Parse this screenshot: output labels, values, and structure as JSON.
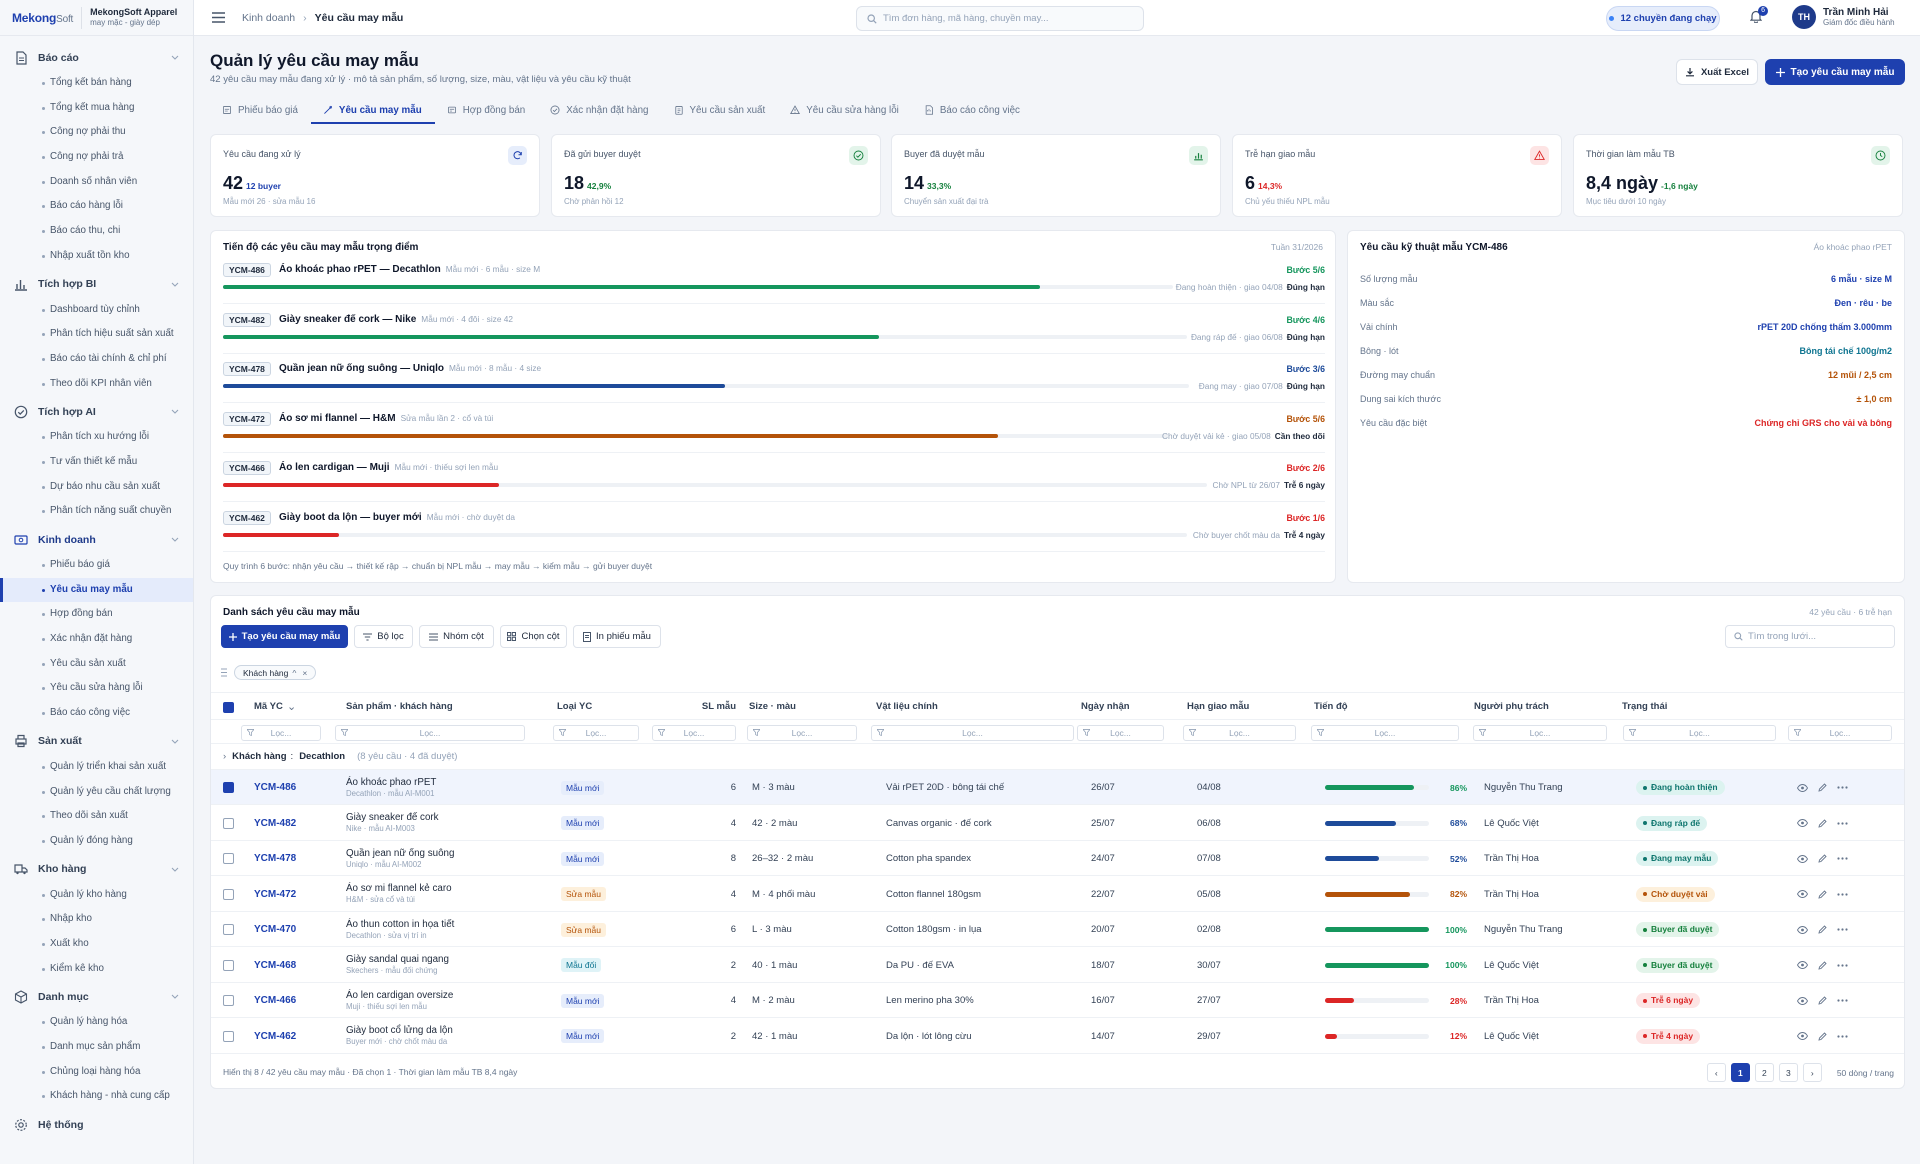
{
  "brand": {
    "logo_main": "Mekong",
    "logo_suffix": "Soft",
    "name": "MekongSoft Apparel",
    "sub": "may mặc - giày dép"
  },
  "sidebar": {
    "groups": [
      {
        "label": "Báo cáo",
        "icon": "document-icon",
        "items": [
          "Tổng kết bán hàng",
          "Tổng kết mua hàng",
          "Công nợ phải thu",
          "Công nợ phải trả",
          "Doanh số nhân viên",
          "Báo cáo hàng lỗi",
          "Báo cáo thu, chi",
          "Nhập xuất tồn kho"
        ]
      },
      {
        "label": "Tích hợp BI",
        "icon": "bar-chart-icon",
        "items": [
          "Dashboard tùy chỉnh",
          "Phân tích hiệu suất sản xuất",
          "Báo cáo tài chính & chỉ phí",
          "Theo dõi KPI nhân viên"
        ]
      },
      {
        "label": "Tích hợp AI",
        "icon": "check-circle-icon",
        "items": [
          "Phân tích xu hướng lỗi",
          "Tư vấn thiết kế mẫu",
          "Dự báo nhu cầu sản xuất",
          "Phân tích năng suất chuyền"
        ]
      },
      {
        "label": "Kinh doanh",
        "icon": "money-icon",
        "items": [
          "Phiếu báo giá",
          "Yêu cầu may mẫu",
          "Hợp đồng bán",
          "Xác nhận đặt hàng",
          "Yêu cầu sản xuất",
          "Yêu cầu sửa hàng lỗi",
          "Báo cáo công việc"
        ]
      },
      {
        "label": "Sản xuất",
        "icon": "printer-icon",
        "items": [
          "Quản lý triển khai sản xuất",
          "Quản lý yêu cầu chất lượng",
          "Theo dõi sản xuất",
          "Quản lý đóng hàng"
        ]
      },
      {
        "label": "Kho hàng",
        "icon": "truck-icon",
        "items": [
          "Quản lý kho hàng",
          "Nhập kho",
          "Xuất kho",
          "Kiểm kê kho"
        ]
      },
      {
        "label": "Danh mục",
        "icon": "box-icon",
        "items": [
          "Quản lý hàng hóa",
          "Danh mục sản phẩm",
          "Chủng loại hàng hóa",
          "Khách hàng - nhà cung cấp"
        ]
      }
    ],
    "system_label": "Hệ thống",
    "active_item": "Yêu cầu may mẫu"
  },
  "topbar": {
    "breadcrumb": [
      "Kinh doanh",
      "Yêu cầu may mẫu"
    ],
    "search_placeholder": "Tìm đơn hàng, mã hàng, chuyền may...",
    "status_pill": "12 chuyền đang chạy",
    "notif_count": "6",
    "user_initials": "TH",
    "user_name": "Trần Minh Hải",
    "user_role": "Giám đốc điều hành"
  },
  "header": {
    "title": "Quản lý yêu cầu may mẫu",
    "subtitle": "42 yêu cầu may mẫu đang xử lý · mô tả sản phẩm, số lượng, size, màu, vật liệu và yêu cầu kỹ thuật",
    "export_label": "Xuất Excel",
    "create_label": "Tạo yêu cầu may mẫu"
  },
  "tabs": [
    {
      "label": "Phiếu báo giá",
      "icon": "receipt-icon"
    },
    {
      "label": "Yêu cầu may mẫu",
      "icon": "needle-icon",
      "active": true
    },
    {
      "label": "Hợp đồng bán",
      "icon": "contract-icon"
    },
    {
      "label": "Xác nhận đặt hàng",
      "icon": "check-circle-icon"
    },
    {
      "label": "Yêu cầu sản xuất",
      "icon": "clipboard-icon"
    },
    {
      "label": "Yêu cầu sửa hàng lỗi",
      "icon": "warning-icon"
    },
    {
      "label": "Báo cáo công việc",
      "icon": "report-icon"
    }
  ],
  "kpis": [
    {
      "label": "Yêu cầu đang xử lý",
      "value": "42",
      "delta": "12 buyer",
      "note": "Mẫu mới 26 · sửa mẫu 16",
      "color": "#1e40af",
      "tint": "#e6edfb",
      "icon": "refresh-icon"
    },
    {
      "label": "Đã gửi buyer duyệt",
      "value": "18",
      "delta": "42,9%",
      "note": "Chờ phản hồi 12",
      "color": "#15803d",
      "tint": "#e3f4ea",
      "icon": "check-circle-icon"
    },
    {
      "label": "Buyer đã duyệt mẫu",
      "value": "14",
      "delta": "33,3%",
      "note": "Chuyển sản xuất đại trà",
      "color": "#15803d",
      "tint": "#e3f4ea",
      "icon": "chart-icon"
    },
    {
      "label": "Trễ hạn giao mẫu",
      "value": "6",
      "delta": "14,3%",
      "note": "Chủ yếu thiếu NPL mẫu",
      "color": "#dc2626",
      "tint": "#fde4e4",
      "icon": "warning-icon"
    },
    {
      "label": "Thời gian làm mẫu TB",
      "value": "8,4 ngày",
      "delta": "-1,6 ngày",
      "note": "Mục tiêu dưới 10 ngày",
      "color": "#15803d",
      "tint": "#e3f4ea",
      "icon": "clock-icon"
    }
  ],
  "progress": {
    "title": "Tiến độ các yêu cầu may mẫu trọng điểm",
    "week": "Tuần 31/2026",
    "rows": [
      {
        "code": "YCM-486",
        "name": "Áo khoác phao rPET — Decathlon",
        "meta": "Mẫu mới · 6 mẫu · size M",
        "step": "Bước 5/6",
        "progress": 0.86,
        "color": "#15965d",
        "stage": "Đang hoàn thiện · giao 04/08",
        "state": "Đúng hạn",
        "state_color": "#1e293b"
      },
      {
        "code": "YCM-482",
        "name": "Giày sneaker đế cork — Nike",
        "meta": "Mẫu mới · 4 đôi · size 42",
        "step": "Bước 4/6",
        "progress": 0.68,
        "color": "#15965d",
        "stage": "Đang ráp đế · giao 06/08",
        "state": "Đúng hạn",
        "state_color": "#1e293b"
      },
      {
        "code": "YCM-478",
        "name": "Quần jean nữ ống suông — Uniqlo",
        "meta": "Mẫu mới · 8 mẫu · 4 size",
        "step": "Bước 3/6",
        "progress": 0.52,
        "color": "#1e4b9a",
        "stage": "Đang may · giao 07/08",
        "state": "Đúng hạn",
        "state_color": "#1e293b"
      },
      {
        "code": "YCM-472",
        "name": "Áo sơ mi flannel — H&M",
        "meta": "Sửa mẫu lần 2 · cổ và túi",
        "step": "Bước 5/6",
        "progress": 0.82,
        "color": "#b45309",
        "stage": "Chờ duyệt vải kẻ · giao 05/08",
        "state": "Cần theo dõi",
        "state_color": "#1e293b"
      },
      {
        "code": "YCM-466",
        "name": "Áo len cardigan — Muji",
        "meta": "Mẫu mới · thiếu sợi len mẫu",
        "step": "Bước 2/6",
        "progress": 0.28,
        "color": "#dc2626",
        "stage": "Chờ NPL từ 26/07",
        "state": "Trễ 6 ngày",
        "state_color": "#1e293b"
      },
      {
        "code": "YCM-462",
        "name": "Giày boot da lộn — buyer mới",
        "meta": "Mẫu mới · chờ duyệt da",
        "step": "Bước 1/6",
        "progress": 0.12,
        "color": "#dc2626",
        "stage": "Chờ buyer chốt màu da",
        "state": "Trễ 4 ngày",
        "state_color": "#1e293b"
      }
    ],
    "footer": "Quy trình 6 bước: nhận yêu cầu → thiết kế rập → chuẩn bị NPL mẫu → may mẫu → kiểm mẫu → gửi buyer duyệt"
  },
  "spec": {
    "title": "Yêu cầu kỹ thuật mẫu YCM-486",
    "product": "Áo khoác phao rPET",
    "rows": [
      {
        "k": "Số lượng mẫu",
        "v": "6 mẫu · size M",
        "color": "#1e40af"
      },
      {
        "k": "Màu sắc",
        "v": "Đen · rêu · be",
        "color": "#1e40af"
      },
      {
        "k": "Vải chính",
        "v": "rPET 20D chống thấm 3.000mm",
        "color": "#1e40af"
      },
      {
        "k": "Bông · lót",
        "v": "Bông tái chế 100g/m2",
        "color": "#0e7490"
      },
      {
        "k": "Đường may chuẩn",
        "v": "12 mũi / 2,5 cm",
        "color": "#b45309"
      },
      {
        "k": "Dung sai kích thước",
        "v": "± 1,0 cm",
        "color": "#b45309"
      },
      {
        "k": "Yêu cầu đặc biệt",
        "v": "Chứng chỉ GRS cho vải và bông",
        "color": "#dc2626"
      }
    ]
  },
  "table": {
    "title": "Danh sách yêu cầu may mẫu",
    "meta": "42 yêu cầu · 6 trễ hạn",
    "toolbar": {
      "create": "Tạo yêu cầu may mẫu",
      "filter": "Bộ lọc",
      "group": "Nhóm cột",
      "columns": "Chọn cột",
      "print": "In phiếu mẫu",
      "search_placeholder": "Tìm trong lưới..."
    },
    "group_chip": "Khách hàng",
    "filter_placeholder": "Lọc...",
    "columns": [
      "Mã YC",
      "Sản phẩm · khách hàng",
      "Loại YC",
      "SL mẫu",
      "Size · màu",
      "Vật liệu chính",
      "Ngày nhận",
      "Hạn giao mẫu",
      "Tiến độ",
      "Người phụ trách",
      "Trạng thái"
    ],
    "group_row": {
      "label": "Khách hàng",
      "value": "Decathlon",
      "meta": "(8 yêu cầu · 4 đã duyệt)"
    },
    "rows": [
      {
        "code": "YCM-486",
        "product": "Áo khoác phao rPET",
        "sub": "Decathlon · mẫu AI-M001",
        "type": "Mẫu mới",
        "qty": "6",
        "size": "M · 3 màu",
        "material": "Vải rPET 20D · bông tái chế",
        "recv": "26/07",
        "due": "04/08",
        "progress": 0.86,
        "pct": "86%",
        "pcolor": "#15965d",
        "owner": "Nguyễn Thu Trang",
        "status": "Đang hoàn thiện",
        "status_color": "#0f766e",
        "status_bg": "#dcf3f0",
        "selected": true
      },
      {
        "code": "YCM-482",
        "product": "Giày sneaker đế cork",
        "sub": "Nike · mẫu AI-M003",
        "type": "Mẫu mới",
        "qty": "4",
        "size": "42 · 2 màu",
        "material": "Canvas organic · đế cork",
        "recv": "25/07",
        "due": "06/08",
        "progress": 0.68,
        "pct": "68%",
        "pcolor": "#1e4b9a",
        "owner": "Lê Quốc Việt",
        "status": "Đang ráp đế",
        "status_color": "#0f766e",
        "status_bg": "#dcf3f0",
        "selected": false
      },
      {
        "code": "YCM-478",
        "product": "Quần jean nữ ống suông",
        "sub": "Uniqlo · mẫu AI-M002",
        "type": "Mẫu mới",
        "qty": "8",
        "size": "26–32 · 2 màu",
        "material": "Cotton pha spandex",
        "recv": "24/07",
        "due": "07/08",
        "progress": 0.52,
        "pct": "52%",
        "pcolor": "#1e4b9a",
        "owner": "Trần Thị Hoa",
        "status": "Đang may mẫu",
        "status_color": "#0f766e",
        "status_bg": "#dcf3f0",
        "selected": false
      },
      {
        "code": "YCM-472",
        "product": "Áo sơ mi flannel kẻ caro",
        "sub": "H&M · sửa cổ và túi",
        "type": "Sửa mẫu",
        "qty": "4",
        "size": "M · 4 phối màu",
        "material": "Cotton flannel 180gsm",
        "recv": "22/07",
        "due": "05/08",
        "progress": 0.82,
        "pct": "82%",
        "pcolor": "#b45309",
        "owner": "Trần Thị Hoa",
        "status": "Chờ duyệt vải",
        "status_color": "#b45309",
        "status_bg": "#fdf0dc",
        "selected": false
      },
      {
        "code": "YCM-470",
        "product": "Áo thun cotton in họa tiết",
        "sub": "Decathlon · sửa vị trí in",
        "type": "Sửa mẫu",
        "qty": "6",
        "size": "L · 3 màu",
        "material": "Cotton 180gsm · in lụa",
        "recv": "20/07",
        "due": "02/08",
        "progress": 1.0,
        "pct": "100%",
        "pcolor": "#15965d",
        "owner": "Nguyễn Thu Trang",
        "status": "Buyer đã duyệt",
        "status_color": "#15803d",
        "status_bg": "#e3f4ea",
        "selected": false
      },
      {
        "code": "YCM-468",
        "product": "Giày sandal quai ngang",
        "sub": "Skechers · mẫu đối chứng",
        "type": "Mẫu đối",
        "qty": "2",
        "size": "40 · 1 màu",
        "material": "Da PU · đế EVA",
        "recv": "18/07",
        "due": "30/07",
        "progress": 1.0,
        "pct": "100%",
        "pcolor": "#15965d",
        "owner": "Lê Quốc Việt",
        "status": "Buyer đã duyệt",
        "status_color": "#15803d",
        "status_bg": "#e3f4ea",
        "selected": false
      },
      {
        "code": "YCM-466",
        "product": "Áo len cardigan oversize",
        "sub": "Muji · thiếu sợi len mẫu",
        "type": "Mẫu mới",
        "qty": "4",
        "size": "M · 2 màu",
        "material": "Len merino pha 30%",
        "recv": "16/07",
        "due": "27/07",
        "progress": 0.28,
        "pct": "28%",
        "pcolor": "#dc2626",
        "owner": "Trần Thị Hoa",
        "status": "Trễ 6 ngày",
        "status_color": "#dc2626",
        "status_bg": "#fde4e4",
        "selected": false
      },
      {
        "code": "YCM-462",
        "product": "Giày boot cổ lửng da lộn",
        "sub": "Buyer mới · chờ chốt màu da",
        "type": "Mẫu mới",
        "qty": "2",
        "size": "42 · 1 màu",
        "material": "Da lộn · lót lông cừu",
        "recv": "14/07",
        "due": "29/07",
        "progress": 0.12,
        "pct": "12%",
        "pcolor": "#dc2626",
        "owner": "Lê Quốc Việt",
        "status": "Trễ 4 ngày",
        "status_color": "#dc2626",
        "status_bg": "#fde4e4",
        "selected": false
      }
    ],
    "type_styles": {
      "Mẫu mới": {
        "color": "#1e40af",
        "bg": "#e6edfb"
      },
      "Sửa mẫu": {
        "color": "#b45309",
        "bg": "#fdf0dc"
      },
      "Mẫu đối": {
        "color": "#0e7490",
        "bg": "#dff3f7"
      }
    },
    "footer": "Hiển thị 8 / 42 yêu cầu may mẫu · Đã chọn 1 · Thời gian làm mẫu TB 8,4 ngày",
    "pages": [
      "1",
      "2",
      "3"
    ],
    "prev": "‹",
    "next": "›",
    "per_page": "50 dòng / trang"
  }
}
